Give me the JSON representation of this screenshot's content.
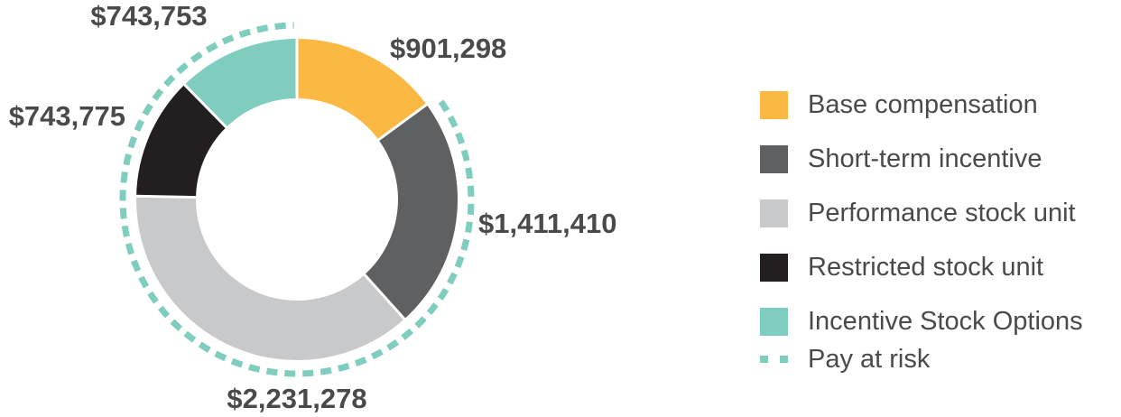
{
  "chart_data": {
    "type": "pie",
    "subtype": "donut",
    "title": "",
    "start_angle_deg": 0,
    "direction": "clockwise",
    "slices": [
      {
        "name": "Base compensation",
        "value": 901298,
        "label": "$901,298",
        "color": "#fbb944"
      },
      {
        "name": "Short-term incentive",
        "value": 1411410,
        "label": "$1,411,410",
        "color": "#5f6062"
      },
      {
        "name": "Performance stock unit",
        "value": 2231278,
        "label": "$2,231,278",
        "color": "#c8c9cb"
      },
      {
        "name": "Restricted stock unit",
        "value": 743775,
        "label": "$743,775",
        "color": "#231f20"
      },
      {
        "name": "Incentive Stock Options",
        "value": 743753,
        "label": "$743,753",
        "color": "#7fcdbf"
      }
    ],
    "pay_at_risk": {
      "label": "Pay at risk",
      "color": "#7fcdbf",
      "covers": [
        "Short-term incentive",
        "Performance stock unit",
        "Restricted stock unit",
        "Incentive Stock Options"
      ]
    },
    "legend_position": "right"
  }
}
